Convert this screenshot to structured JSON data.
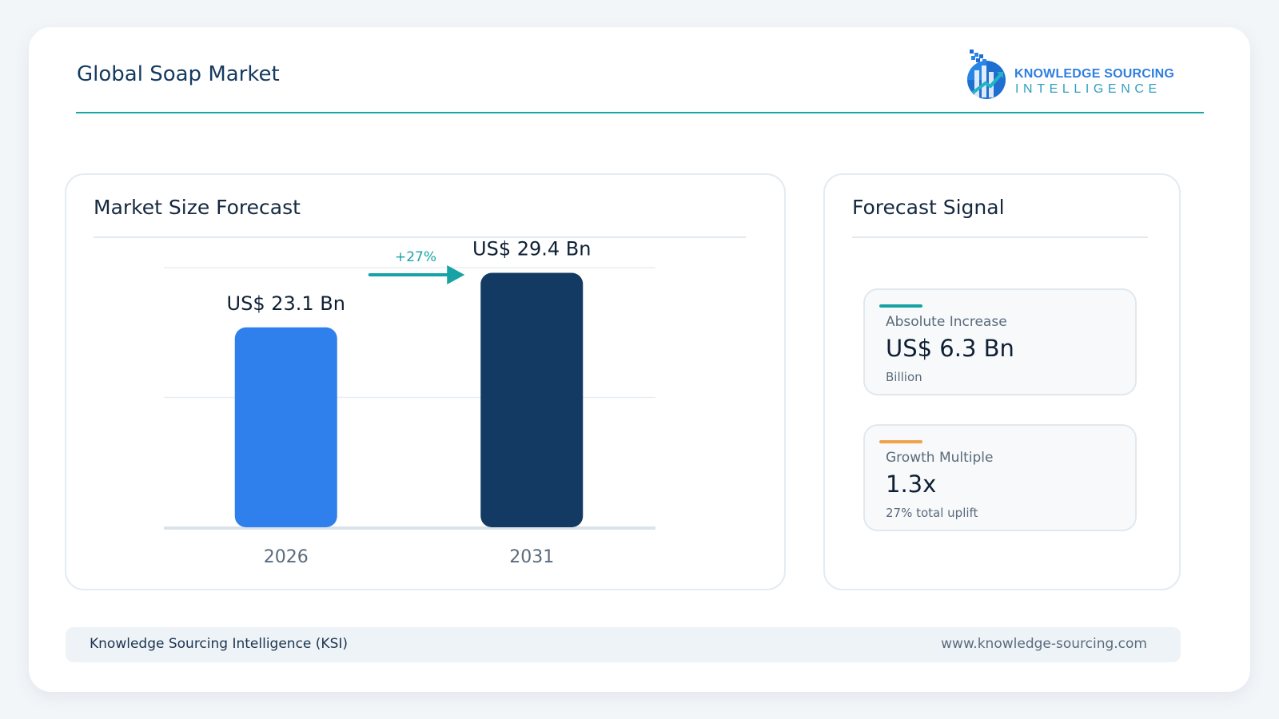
{
  "header": {
    "title": "Global Soap Market",
    "logo": {
      "line1": "KNOWLEDGE SOURCING",
      "line2": "INTELLIGENCE",
      "icon": "bar-chart-arrow-logo-icon"
    }
  },
  "left_panel": {
    "title": "Market Size Forecast"
  },
  "right_panel": {
    "title": "Forecast Signal",
    "metrics": [
      {
        "label": "Absolute Increase",
        "value": "US$ 6.3 Bn",
        "sub": "Billion",
        "accent": "#17a2a4"
      },
      {
        "label": "Growth Multiple",
        "value": "1.3x",
        "sub": "27% total uplift",
        "accent": "#f0a24a"
      }
    ]
  },
  "footer": {
    "left": "Knowledge Sourcing Intelligence (KSI)",
    "right": "www.knowledge-sourcing.com"
  },
  "chart_data": {
    "type": "bar",
    "categories": [
      "2026",
      "2031"
    ],
    "values": [
      23.1,
      29.4
    ],
    "data_labels": [
      "US$ 23.1 Bn",
      "US$ 29.4 Bn"
    ],
    "colors": [
      "#2f80ed",
      "#123a63"
    ],
    "growth_label": "+27%",
    "growth_color": "#17a2a4",
    "ylim": [
      0,
      30
    ],
    "grid": true
  }
}
